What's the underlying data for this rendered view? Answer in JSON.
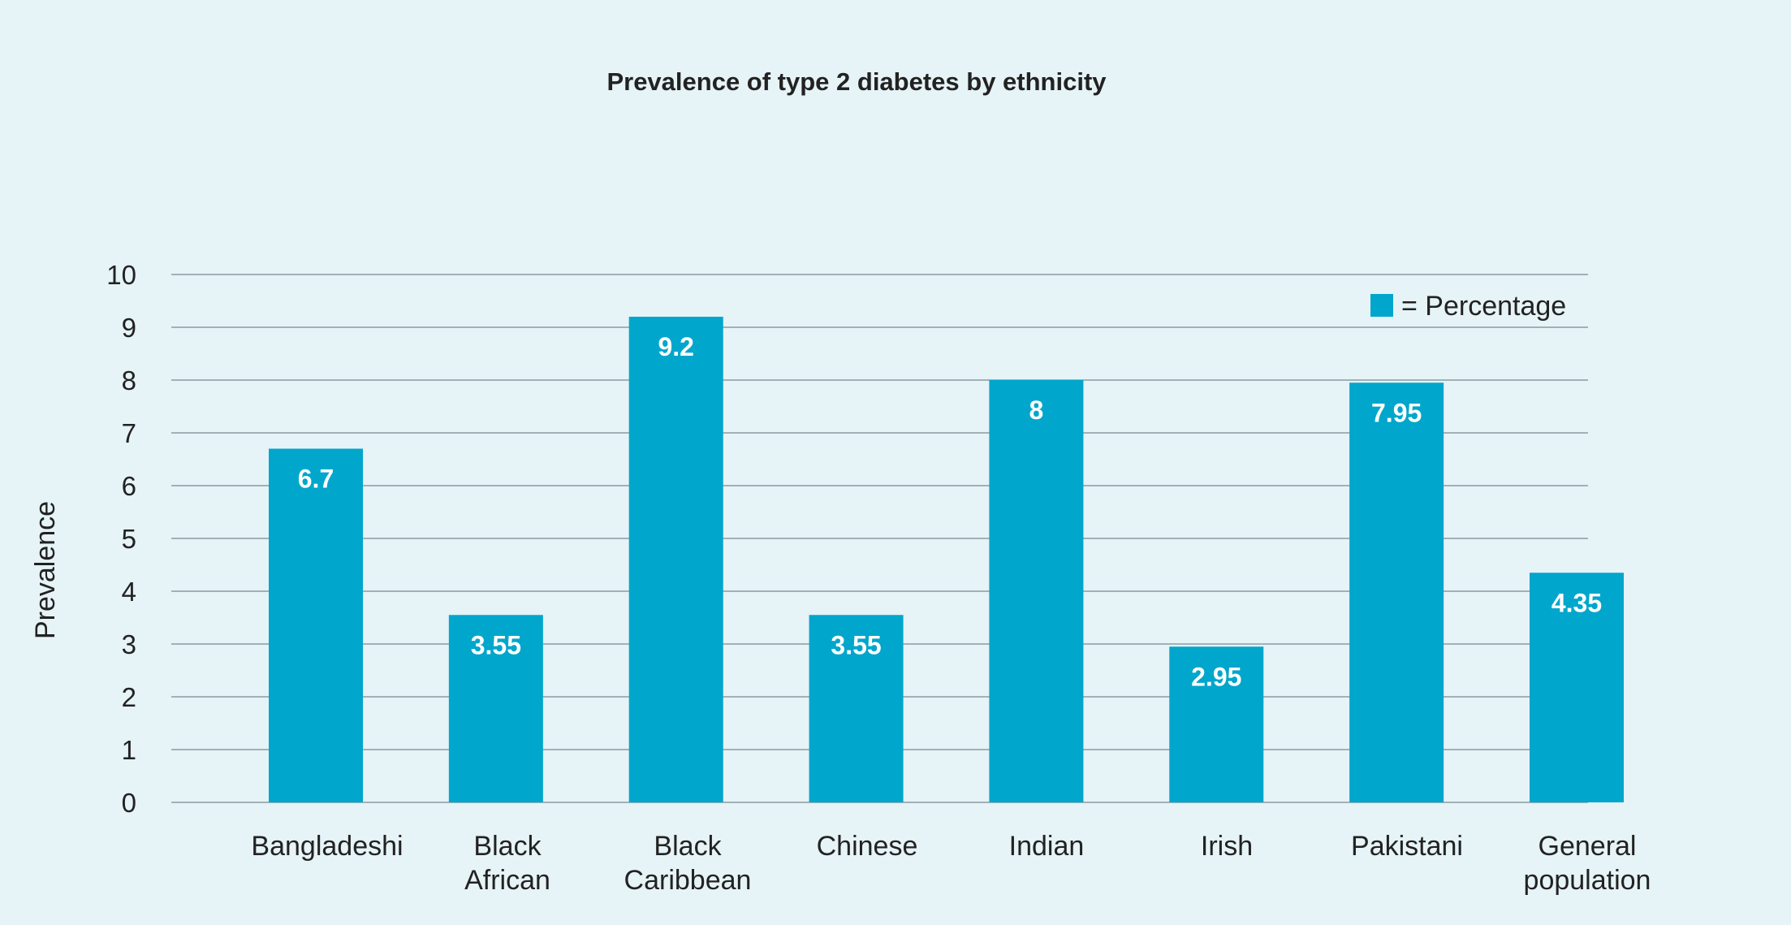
{
  "chart_data": {
    "type": "bar",
    "title": "Prevalence of type 2 diabetes by ethnicity",
    "ylabel": "Prevalence",
    "xlabel": "",
    "ylim": [
      0,
      10
    ],
    "yticks": [
      0,
      1,
      2,
      3,
      4,
      5,
      6,
      7,
      8,
      9,
      10
    ],
    "grid": true,
    "legend": {
      "label": "= Percentage",
      "placement": "top-right"
    },
    "categories": [
      [
        "Bangladeshi"
      ],
      [
        "Black",
        "African"
      ],
      [
        "Black",
        "Caribbean"
      ],
      [
        "Chinese"
      ],
      [
        "Indian"
      ],
      [
        "Irish"
      ],
      [
        "Pakistani"
      ],
      [
        "General",
        "population"
      ]
    ],
    "values": [
      6.7,
      3.55,
      9.2,
      3.55,
      8,
      2.95,
      7.95,
      4.35
    ],
    "data_labels": [
      "6.7",
      "3.55",
      "9.2",
      "3.55",
      "8",
      "2.95",
      "7.95",
      "4.35"
    ],
    "colors": {
      "bar": "#00a6cc",
      "background": "#e6f3f7"
    }
  }
}
